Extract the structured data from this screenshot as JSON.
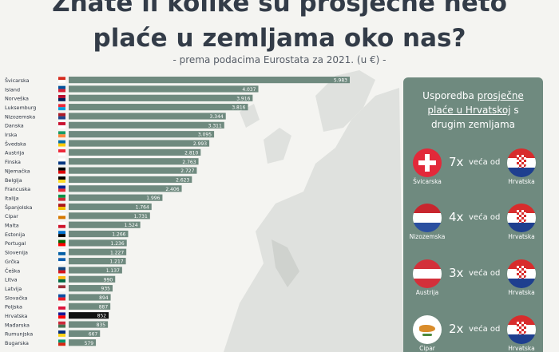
{
  "header": {
    "title_line1": "Znate li kolike su prosječne neto",
    "title_line2": "plaće u zemljama oko nas?",
    "subtitle": "- prema podacima Eurostata za 2021. (u €) -"
  },
  "colors": {
    "bar": "#6f8a7f",
    "highlight_bar": "#111111",
    "panel": "#6f8a7f",
    "title": "#333c48"
  },
  "chart_data": {
    "type": "bar",
    "orientation": "horizontal",
    "title": "Znate li kolike su prosječne neto plaće u zemljama oko nas?",
    "subtitle": "- prema podacima Eurostata za 2021. (u €) -",
    "categories": [
      "Švicarska",
      "Island",
      "Norveška",
      "Luksemburg",
      "Nizozemska",
      "Danska",
      "Irska",
      "Švedska",
      "Austrija",
      "Finska",
      "Njemačka",
      "Belgija",
      "Francuska",
      "Italija",
      "Španjolska",
      "Cipar",
      "Malta",
      "Estonija",
      "Portugal",
      "Slovenija",
      "Grčka",
      "Češka",
      "Litva",
      "Latvija",
      "Slovačka",
      "Poljska",
      "Hrvatska",
      "Mađarska",
      "Rumunjska",
      "Bugarska"
    ],
    "values": [
      5983,
      4037,
      3916,
      3816,
      3344,
      3311,
      3095,
      2993,
      2810,
      2763,
      2727,
      2623,
      2406,
      1996,
      1764,
      1731,
      1524,
      1266,
      1236,
      1227,
      1217,
      1137,
      990,
      935,
      894,
      887,
      852,
      835,
      667,
      579
    ],
    "value_labels": [
      "5.983",
      "4.037",
      "3.916",
      "3.816",
      "3.344",
      "3.311",
      "3.095",
      "2.993",
      "2.810",
      "2.763",
      "2.727",
      "2.623",
      "2.406",
      "1.996",
      "1.764",
      "1.731",
      "1.524",
      "1.266",
      "1.236",
      "1.227",
      "1.217",
      "1.137",
      "990",
      "935",
      "894",
      "887",
      "852",
      "835",
      "667",
      "579"
    ],
    "highlight": "Hrvatska",
    "xlim": [
      0,
      6000
    ]
  },
  "comparison": {
    "heading_line1_a": "Usporedba ",
    "heading_line1_b": "prosječne",
    "heading_line2_a": "plaće u Hrvatskoj",
    "heading_line2_b": " s",
    "heading_line3": "drugim zemljama",
    "rows": [
      {
        "country": "Švicarska",
        "multiplier": "7x",
        "word": "veća od",
        "other": "Hrvatska"
      },
      {
        "country": "Nizozemska",
        "multiplier": "4x",
        "word": "veća od",
        "other": "Hrvatska"
      },
      {
        "country": "Austrija",
        "multiplier": "3x",
        "word": "veća od",
        "other": "Hrvatska"
      },
      {
        "country": "Cipar",
        "multiplier": "2x",
        "word": "veća od",
        "other": "Hrvatska"
      }
    ]
  }
}
